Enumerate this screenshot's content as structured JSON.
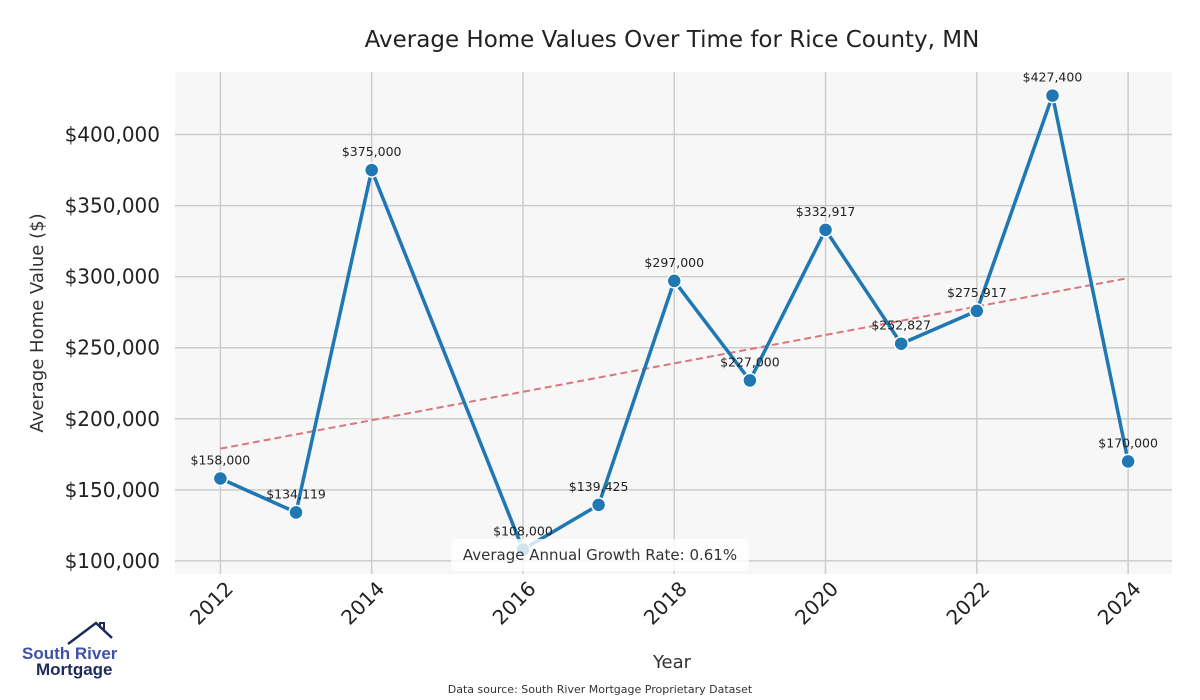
{
  "chart_data": {
    "type": "line",
    "title": "Average Home Values Over Time for Rice County, MN",
    "xlabel": "Year",
    "ylabel": "Average Home Value ($)",
    "x": [
      2012,
      2013,
      2014,
      2016,
      2017,
      2018,
      2019,
      2020,
      2021,
      2022,
      2023,
      2024
    ],
    "series": [
      {
        "name": "Average Home Value",
        "values": [
          158000,
          134119,
          375000,
          108000,
          139425,
          297000,
          227000,
          332917,
          252827,
          275917,
          427400,
          170000
        ],
        "color": "#1f77b4"
      }
    ],
    "data_labels": [
      "$158,000",
      "$134,119",
      "$375,000",
      "$108,000",
      "$139,425",
      "$297,000",
      "$227,000",
      "$332,917",
      "$252,827",
      "$275,917",
      "$427,400",
      "$170,000"
    ],
    "trend_line": {
      "x": [
        2012,
        2024
      ],
      "values": [
        179000,
        299000
      ],
      "color": "#d9777a",
      "style": "dashed"
    },
    "xticks": [
      2012,
      2014,
      2016,
      2018,
      2020,
      2022,
      2024
    ],
    "xtick_labels": [
      "2012",
      "2014",
      "2016",
      "2018",
      "2020",
      "2022",
      "2024"
    ],
    "yticks": [
      100000,
      150000,
      200000,
      250000,
      300000,
      350000,
      400000
    ],
    "ytick_labels": [
      "$100,000",
      "$150,000",
      "$200,000",
      "$250,000",
      "$300,000",
      "$350,000",
      "$400,000"
    ],
    "xlim": [
      2011.4,
      2024.58
    ],
    "ylim": [
      90800,
      444000
    ],
    "grid": true,
    "annotation": "Average Annual Growth Rate: 0.61%"
  },
  "footer": {
    "source": "Data source: South River Mortgage Proprietary Dataset"
  },
  "logo": {
    "line1": "South River",
    "line2": "Mortgage"
  }
}
